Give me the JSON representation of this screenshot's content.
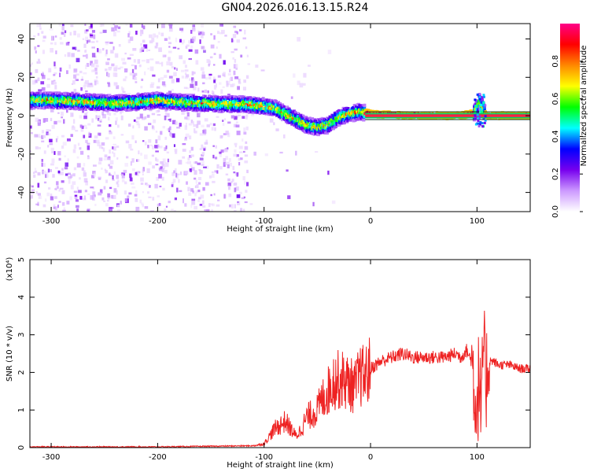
{
  "figure_title": "GN04.2026.016.13.15.R24",
  "chart_data": [
    {
      "type": "heatmap",
      "xlabel": "Height of straight line (km)",
      "ylabel": "Frequency (Hz)",
      "xlim": [
        -320,
        150
      ],
      "ylim": [
        -50,
        48
      ],
      "x_ticks": [
        -300,
        -200,
        -100,
        0,
        100
      ],
      "y_ticks": [
        -40,
        -20,
        0,
        20,
        40
      ],
      "colorbar": {
        "label": "Normalized spectral amplitude",
        "range": [
          0,
          1
        ],
        "ticks": [
          0.0,
          0.2,
          0.4,
          0.6,
          0.8
        ],
        "colors": [
          "#ffffff",
          "#cc99ff",
          "#7700ee",
          "#0000ff",
          "#00ffff",
          "#00ff00",
          "#ffff00",
          "#ff8800",
          "#ff0000",
          "#ff0088"
        ]
      },
      "ridge": {
        "x": [
          -320,
          -300,
          -280,
          -260,
          -240,
          -220,
          -200,
          -180,
          -160,
          -140,
          -120,
          -100,
          -90,
          -80,
          -70,
          -60,
          -50,
          -40,
          -30,
          -20,
          -10,
          0,
          20,
          50,
          80,
          97,
          100,
          103,
          107,
          110,
          150
        ],
        "y": [
          8,
          8,
          7.5,
          7,
          6.5,
          7,
          8,
          7,
          6.5,
          6,
          6,
          5,
          4,
          1,
          -2,
          -5,
          -6,
          -5,
          -1,
          1,
          2,
          1,
          0.5,
          0,
          0,
          1,
          4,
          8,
          1,
          0,
          0
        ]
      }
    },
    {
      "type": "line",
      "xlabel": "Height of straight line (km)",
      "ylabel": "SNR (10 * v/v)",
      "y_multiplier": "(x10⁴)",
      "xlim": [
        -320,
        150
      ],
      "ylim": [
        0,
        5
      ],
      "x_ticks": [
        -300,
        -200,
        -100,
        0,
        100
      ],
      "y_ticks": [
        0,
        1,
        2,
        3,
        4,
        5
      ],
      "series": [
        {
          "color": "#ee2222",
          "x": [
            -320,
            -200,
            -110,
            -100,
            -95,
            -90,
            -85,
            -80,
            -75,
            -70,
            -65,
            -60,
            -55,
            -50,
            -45,
            -40,
            -35,
            -30,
            -25,
            -20,
            -15,
            -10,
            -5,
            0,
            10,
            20,
            30,
            40,
            50,
            60,
            70,
            80,
            85,
            90,
            95,
            98,
            100,
            102,
            104,
            106,
            108,
            110,
            115,
            120,
            130,
            140,
            150
          ],
          "y": [
            0.02,
            0.02,
            0.05,
            0.1,
            0.3,
            0.5,
            0.6,
            0.7,
            0.5,
            0.3,
            0.5,
            0.8,
            0.9,
            1.0,
            1.3,
            1.5,
            1.8,
            1.8,
            1.8,
            1.7,
            1.6,
            1.9,
            1.9,
            2.1,
            2.3,
            2.4,
            2.5,
            2.4,
            2.4,
            2.4,
            2.4,
            2.5,
            2.4,
            2.6,
            2.3,
            1.5,
            1.0,
            2.0,
            0.5,
            3.0,
            1.5,
            2.3,
            2.3,
            2.2,
            2.2,
            2.1,
            2.1
          ]
        }
      ]
    }
  ]
}
